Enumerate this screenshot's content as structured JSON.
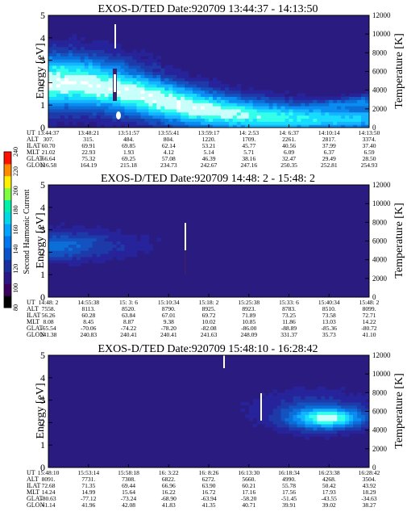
{
  "colors": {
    "colorbar_stops": [
      "#000000",
      "#3a0060",
      "#2c1585",
      "#1a2f9f",
      "#0a53c8",
      "#0077ee",
      "#00a4ff",
      "#00d6e6",
      "#00f0a8",
      "#80ff40",
      "#ffef00",
      "#ff8a00",
      "#ff1000"
    ],
    "background_cmap": [
      "#2a1b80",
      "#27239a",
      "#1d3aa8",
      "#1452c0",
      "#0c6fd8",
      "#0a8cf0",
      "#14b4ff",
      "#18dcff",
      "#34ffe8",
      "#c8fffa",
      "#ffffff"
    ]
  },
  "colorbar": {
    "label": "Second Harmonic Current",
    "ticks": [
      "80",
      "100",
      "120",
      "140",
      "160",
      "180",
      "200",
      "220",
      "240"
    ]
  },
  "orbit_row_labels": [
    "UT",
    "ALT",
    "ILAT",
    "MLT",
    "GLAT",
    "GLON"
  ],
  "chart_data": [
    {
      "type": "heatmap",
      "title": "EXOS-D/TED    Date:920709   13:44:37 - 14:13:50",
      "ylabel": "Energy [eV]",
      "y2label": "Temperature [K]",
      "ylim": [
        0,
        5
      ],
      "y2lim": [
        0,
        12000
      ],
      "yticks": [
        "0",
        "1",
        "2",
        "3",
        "4",
        "5"
      ],
      "y2ticks": [
        "0",
        "2000",
        "4000",
        "6000",
        "8000",
        "10000",
        "12000"
      ],
      "orbit_table": {
        "UT": [
          "13:44:37",
          "13:48:21",
          "13:51:57",
          "13:55:41",
          "13:59:17",
          "14: 2:53",
          "14: 6:37",
          "14:10:14",
          "14:13:50"
        ],
        "ALT": [
          "307.",
          "315.",
          "484.",
          "804.",
          "1220.",
          "1709.",
          "2261.",
          "2817.",
          "3374."
        ],
        "ILAT": [
          "60.70",
          "69.91",
          "69.85",
          "62.14",
          "53.21",
          "45.77",
          "40.56",
          "37.99",
          "37.40"
        ],
        "MLT": [
          "21.02",
          "22.93",
          "1.93",
          "4.12",
          "5.14",
          "5.71",
          "6.09",
          "6.37",
          "6.59"
        ],
        "GLAT": [
          "66.64",
          "75.32",
          "69.25",
          "57.08",
          "46.39",
          "38.16",
          "32.47",
          "29.49",
          "28.50"
        ],
        "GLON": [
          "116.58",
          "164.19",
          "215.18",
          "234.73",
          "242.67",
          "247.16",
          "250.35",
          "252.81",
          "254.93"
        ]
      }
    },
    {
      "type": "heatmap",
      "title": "EXOS-D/TED    Date:920709   14:48: 2 - 15:48: 2",
      "ylabel": "Energy [eV]",
      "y2label": "Temperature [K]",
      "ylim": [
        0,
        5
      ],
      "y2lim": [
        0,
        12000
      ],
      "yticks": [
        "0",
        "1",
        "2",
        "3",
        "4",
        "5"
      ],
      "y2ticks": [
        "0",
        "2000",
        "4000",
        "6000",
        "8000",
        "10000",
        "12000"
      ],
      "orbit_table": {
        "UT": [
          "14:48: 2",
          "14:55:38",
          "15: 3: 6",
          "15:10:34",
          "15:18: 2",
          "15:25:38",
          "15:33: 6",
          "15:40:34",
          "15:48: 2"
        ],
        "ALT": [
          "7558.",
          "8113.",
          "8520.",
          "8790.",
          "8925.",
          "8923.",
          "8783.",
          "8510.",
          "8099."
        ],
        "ILAT": [
          "56.26",
          "60.28",
          "63.84",
          "67.01",
          "69.72",
          "71.89",
          "73.25",
          "73.58",
          "72.71"
        ],
        "MLT": [
          "8.08",
          "8.45",
          "8.87",
          "9.38",
          "10.02",
          "10.85",
          "11.86",
          "13.03",
          "14.22"
        ],
        "GLAT": [
          "-65.54",
          "-70.06",
          "-74.22",
          "-78.20",
          "-82.08",
          "-86.00",
          "-88.89",
          "-85.36",
          "-80.72"
        ],
        "GLON": [
          "241.38",
          "240.83",
          "240.41",
          "240.41",
          "241.63",
          "248.09",
          "331.37",
          "35.73",
          "41.10"
        ]
      }
    },
    {
      "type": "heatmap",
      "title": "EXOS-D/TED    Date:920709   15:48:10 - 16:28:42",
      "ylabel": "Energy [eV]",
      "y2label": "Temperature [K]",
      "ylim": [
        0,
        5
      ],
      "y2lim": [
        0,
        12000
      ],
      "yticks": [
        "0",
        "1",
        "2",
        "3",
        "4",
        "5"
      ],
      "y2ticks": [
        "0",
        "2000",
        "4000",
        "6000",
        "8000",
        "10000",
        "12000"
      ],
      "orbit_table": {
        "UT": [
          "15:48:10",
          "15:53:14",
          "15:58:18",
          "16: 3:22",
          "16: 8:26",
          "16:13:30",
          "16:18:34",
          "16:23:38",
          "16:28:42"
        ],
        "ALT": [
          "8091.",
          "7731.",
          "7308.",
          "6822.",
          "6272.",
          "5660.",
          "4990.",
          "4268.",
          "3504."
        ],
        "ILAT": [
          "72.68",
          "71.35",
          "69.44",
          "66.96",
          "63.90",
          "60.21",
          "55.78",
          "50.42",
          "43.92"
        ],
        "MLT": [
          "14.24",
          "14.99",
          "15.64",
          "16.22",
          "16.72",
          "17.16",
          "17.56",
          "17.93",
          "18.29"
        ],
        "GLAT": [
          "-80.63",
          "-77.12",
          "-73.24",
          "-68.90",
          "-63.94",
          "-58.20",
          "-51.45",
          "-43.55",
          "-34.63"
        ],
        "GLON": [
          "41.14",
          "41.96",
          "42.08",
          "41.83",
          "41.35",
          "40.71",
          "39.91",
          "39.02",
          "38.27"
        ]
      }
    }
  ]
}
